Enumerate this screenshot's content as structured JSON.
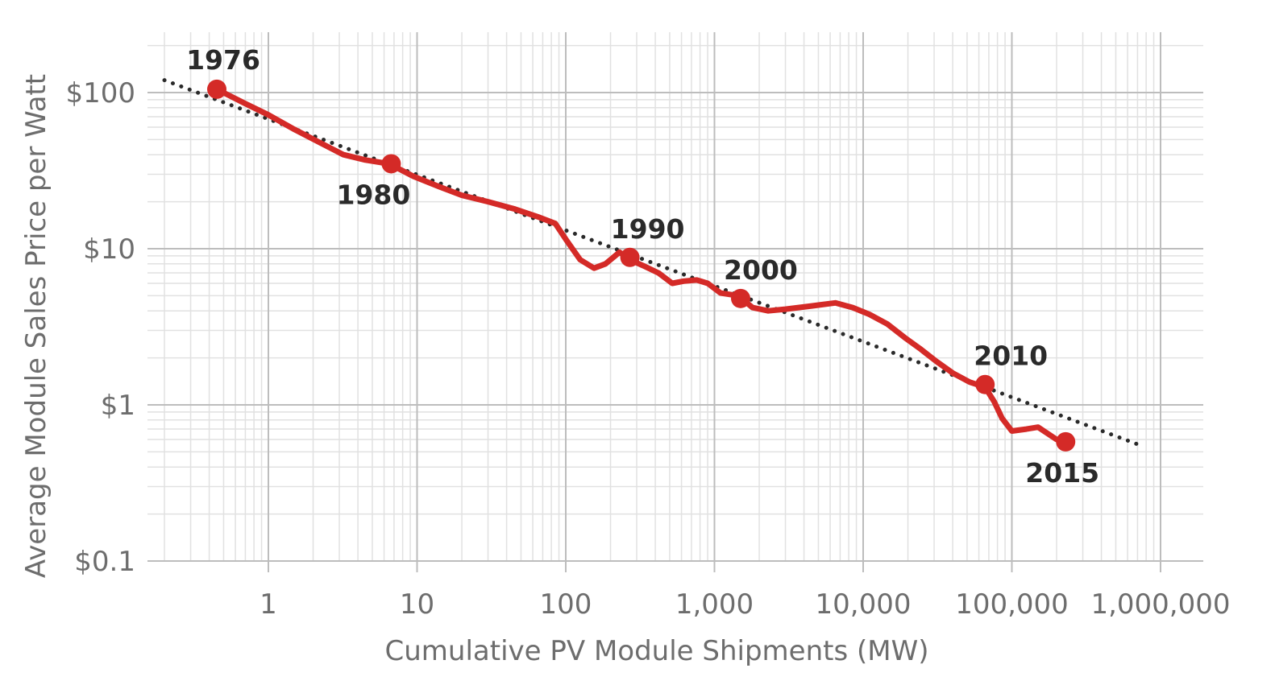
{
  "chart_data": {
    "type": "line",
    "title": "",
    "xlabel": "Cumulative PV Module Shipments (MW)",
    "ylabel": "Average Module Sales Price per Watt",
    "x_scale": "log",
    "y_scale": "log",
    "xlim": [
      0.2,
      3000000
    ],
    "ylim": [
      0.1,
      250
    ],
    "x_ticks": [
      {
        "value": 1,
        "label": "1"
      },
      {
        "value": 10,
        "label": "10"
      },
      {
        "value": 100,
        "label": "100"
      },
      {
        "value": 1000,
        "label": "1,000"
      },
      {
        "value": 10000,
        "label": "10,000"
      },
      {
        "value": 100000,
        "label": "100,000"
      },
      {
        "value": 1000000,
        "label": "1,000,000"
      }
    ],
    "y_ticks": [
      {
        "value": 0.1,
        "label": "$0.1"
      },
      {
        "value": 1,
        "label": "$1"
      },
      {
        "value": 10,
        "label": "$10"
      },
      {
        "value": 100,
        "label": "$100"
      }
    ],
    "grid": true,
    "series": [
      {
        "color": "#d42a27",
        "style": "solid",
        "x": [
          0.45,
          0.7,
          1.0,
          1.5,
          2.2,
          3.2,
          4.5,
          6.5,
          9.5,
          14,
          20,
          30,
          45,
          65,
          85,
          100,
          125,
          155,
          185,
          230,
          270,
          330,
          420,
          520,
          620,
          760,
          900,
          1100,
          1450,
          1800,
          2300,
          3000,
          4500,
          6500,
          8500,
          11000,
          14500,
          19000,
          24000,
          31000,
          40000,
          52000,
          66000,
          76000,
          86000,
          100000,
          125000,
          150000,
          200000,
          230000
        ],
        "y": [
          105,
          85,
          72,
          58,
          48,
          40,
          37,
          35,
          29,
          25,
          22,
          20,
          18,
          16,
          14.5,
          11.5,
          8.5,
          7.5,
          8,
          9.5,
          8.5,
          7.8,
          7,
          6,
          6.2,
          6.3,
          6,
          5.2,
          5,
          4.2,
          4.0,
          4.1,
          4.3,
          4.5,
          4.2,
          3.8,
          3.3,
          2.7,
          2.3,
          1.9,
          1.6,
          1.4,
          1.3,
          1.05,
          0.82,
          0.68,
          0.7,
          0.72,
          0.6,
          0.58
        ]
      },
      {
        "color": "#2a2a2a",
        "style": "dotted",
        "x": [
          0.2,
          700000
        ],
        "y": [
          120,
          0.56
        ]
      }
    ],
    "annotations": [
      {
        "label": "1976",
        "x": 0.45,
        "y": 105,
        "marker": true
      },
      {
        "label": "1980",
        "x": 6.7,
        "y": 35,
        "marker": true
      },
      {
        "label": "1990",
        "x": 270,
        "y": 8.8,
        "marker": true
      },
      {
        "label": "2000",
        "x": 1500,
        "y": 4.8,
        "marker": true
      },
      {
        "label": "2010",
        "x": 66000,
        "y": 1.35,
        "marker": true
      },
      {
        "label": "2015",
        "x": 230000,
        "y": 0.58,
        "marker": true
      }
    ]
  }
}
